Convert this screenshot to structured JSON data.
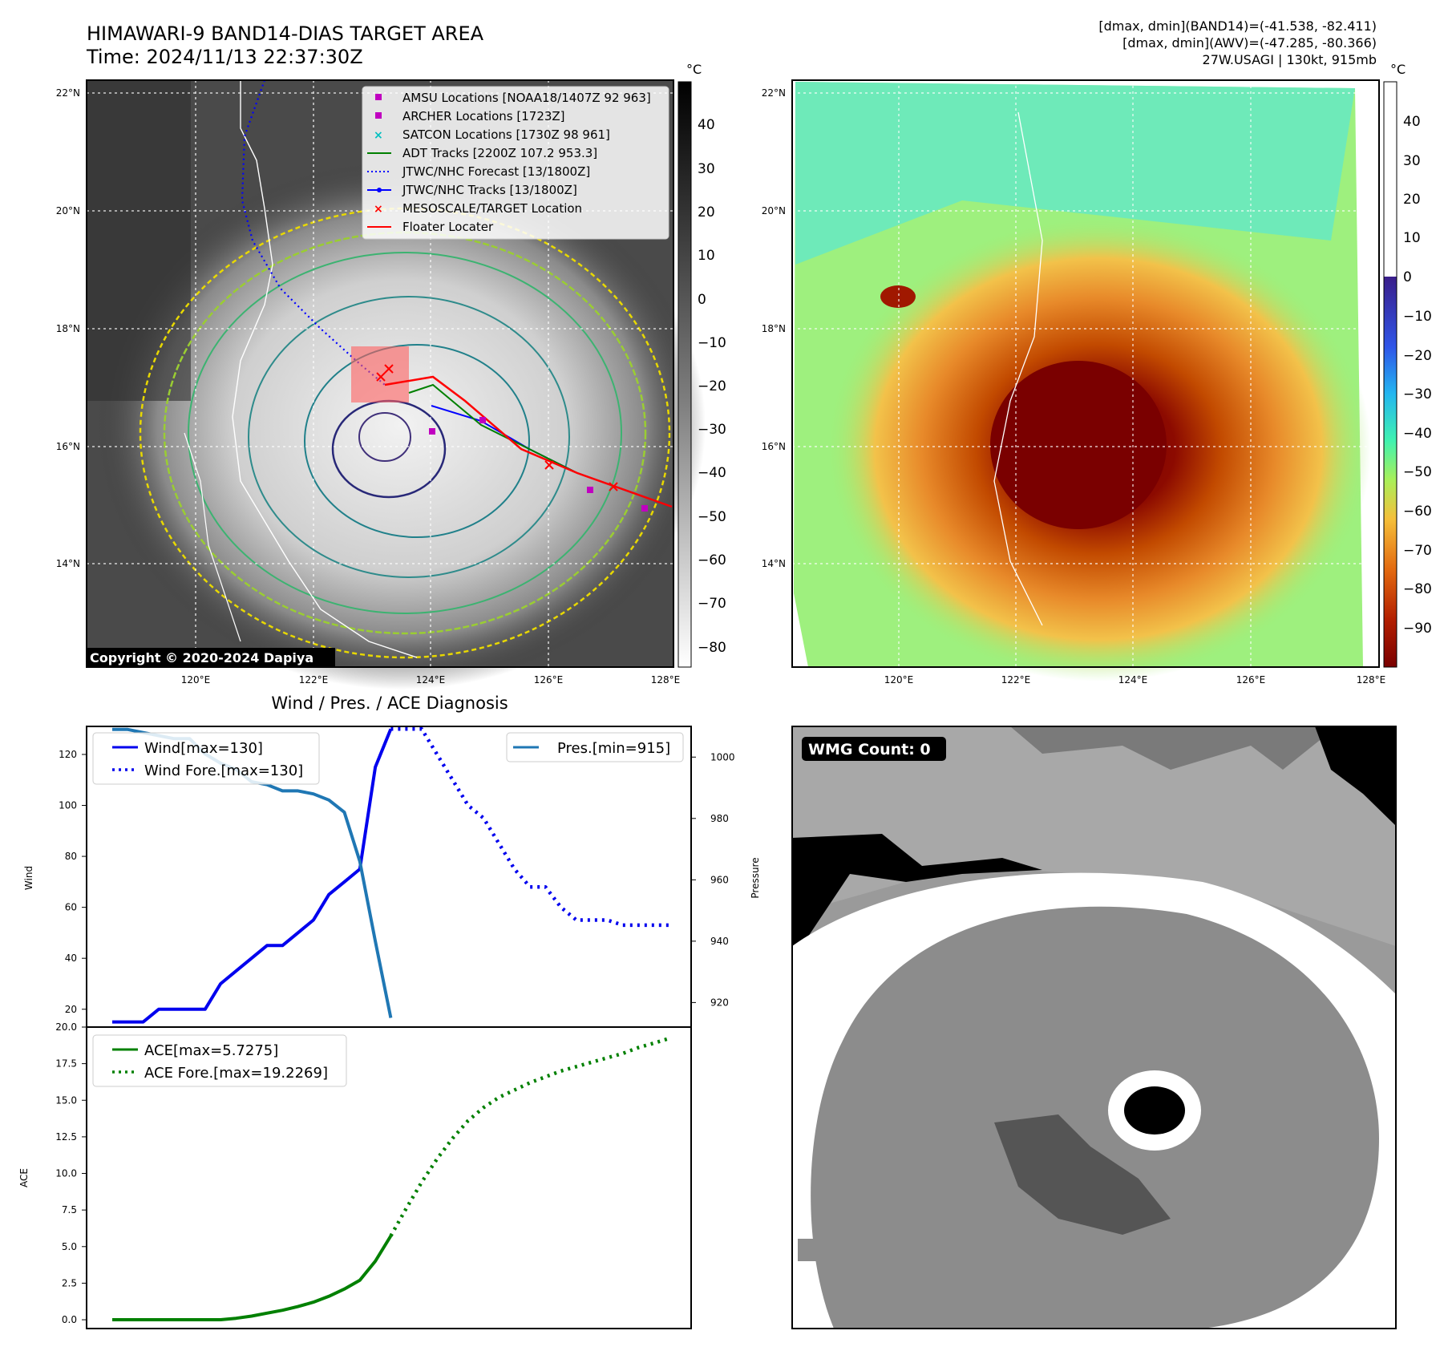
{
  "header": {
    "title": "HIMAWARI-9 BAND14-DIAS TARGET AREA",
    "time": "Time: 2024/11/13 22:37:30Z",
    "stats_line1": "[dmax, dmin](BAND14)=(-41.538, -82.411)",
    "stats_line2": "[dmax, dmin](AWV)=(-47.285, -80.366)",
    "stats_line3": "27W.USAGI | 130kt, 915mb"
  },
  "map_panel": {
    "lat_ticks": [
      "22°N",
      "20°N",
      "18°N",
      "16°N",
      "14°N"
    ],
    "lon_ticks": [
      "120°E",
      "122°E",
      "124°E",
      "126°E",
      "128°E"
    ],
    "copyright": "Copyright © 2020-2024 Dapiya",
    "colorbar_unit": "°C",
    "colorbar_ticks": [
      "40",
      "30",
      "20",
      "10",
      "0",
      "−10",
      "−20",
      "−30",
      "−40",
      "−50",
      "−60",
      "−70",
      "−80"
    ],
    "legend": [
      {
        "label": "AMSU Locations [NOAA18/1407Z 92 963]",
        "marker": "square",
        "color": "#c000c0"
      },
      {
        "label": "ARCHER Locations [1723Z]",
        "marker": "square",
        "color": "#c000c0"
      },
      {
        "label": "SATCON Locations [1730Z 98 961]",
        "marker": "x",
        "color": "#00c0c0"
      },
      {
        "label": "ADT Tracks [2200Z 107.2 953.3]",
        "marker": "line",
        "color": "#008000"
      },
      {
        "label": "JTWC/NHC Forecast [13/1800Z]",
        "marker": "dotted",
        "color": "#0000ff"
      },
      {
        "label": "JTWC/NHC Tracks [13/1800Z]",
        "marker": "line-dot",
        "color": "#0000ff"
      },
      {
        "label": "MESOSCALE/TARGET Location",
        "marker": "x",
        "color": "#ff0000"
      },
      {
        "label": "Floater Locater",
        "marker": "line",
        "color": "#ff0000"
      }
    ]
  },
  "awv_panel": {
    "lat_ticks": [
      "22°N",
      "20°N",
      "18°N",
      "16°N",
      "14°N"
    ],
    "lon_ticks": [
      "120°E",
      "122°E",
      "124°E",
      "126°E",
      "128°E"
    ],
    "colorbar_unit": "°C",
    "colorbar_ticks": [
      "40",
      "30",
      "20",
      "10",
      "0",
      "−10",
      "−20",
      "−30",
      "−40",
      "−50",
      "−60",
      "−70",
      "−80",
      "−90"
    ]
  },
  "wmg_panel": {
    "badge": "WMG Count: 0"
  },
  "chart_data": [
    {
      "type": "line",
      "title": "Wind / Pres. / ACE Diagnosis",
      "ylabel": "Wind",
      "y2label": "Pressure",
      "ylim": [
        13,
        131
      ],
      "y2lim": [
        912,
        1010
      ],
      "yticks": [
        "20",
        "40",
        "60",
        "80",
        "100",
        "120"
      ],
      "y2ticks": [
        "920",
        "940",
        "960",
        "980",
        "1000"
      ],
      "legend_left": [
        "Wind[max=130]",
        "Wind Fore.[max=130]"
      ],
      "legend_right": [
        "Pres.[min=915]"
      ],
      "series": [
        {
          "name": "Wind[max=130]",
          "style": "solid",
          "color": "#0000ee",
          "axis": "left",
          "x": [
            0,
            1,
            2,
            3,
            4,
            5,
            6,
            7,
            8,
            9,
            10,
            11,
            12,
            13,
            14,
            15,
            16,
            17,
            18
          ],
          "values": [
            15,
            15,
            15,
            20,
            20,
            20,
            20,
            30,
            35,
            40,
            45,
            45,
            50,
            55,
            65,
            70,
            75,
            115,
            130
          ]
        },
        {
          "name": "Wind Fore.[max=130]",
          "style": "dotted",
          "color": "#0000ee",
          "axis": "left",
          "x": [
            18,
            19,
            20,
            21,
            22,
            23,
            24,
            25,
            26,
            27,
            28,
            29,
            30,
            31,
            32,
            33,
            34,
            35,
            36
          ],
          "values": [
            130,
            130,
            130,
            120,
            110,
            100,
            95,
            85,
            75,
            68,
            68,
            60,
            55,
            55,
            55,
            53,
            53,
            53,
            53
          ]
        },
        {
          "name": "Pres.[min=915]",
          "style": "solid",
          "color": "#1f77b4",
          "axis": "right",
          "x": [
            0,
            1,
            2,
            3,
            4,
            5,
            6,
            7,
            8,
            9,
            10,
            11,
            12,
            13,
            14,
            15,
            16,
            17,
            18
          ],
          "values": [
            1009,
            1009,
            1008,
            1007,
            1006,
            1006,
            1001,
            998,
            996,
            992,
            991,
            989,
            989,
            988,
            986,
            982,
            966,
            940,
            915
          ]
        }
      ]
    },
    {
      "type": "line",
      "ylabel": "ACE",
      "ylim": [
        -0.6,
        20
      ],
      "yticks": [
        "0.0",
        "2.5",
        "5.0",
        "7.5",
        "10.0",
        "12.5",
        "15.0",
        "17.5",
        "20.0"
      ],
      "legend": [
        "ACE[max=5.7275]",
        "ACE Fore.[max=19.2269]"
      ],
      "series": [
        {
          "name": "ACE[max=5.7275]",
          "style": "solid",
          "color": "#008000",
          "x": [
            0,
            1,
            2,
            3,
            4,
            5,
            6,
            7,
            8,
            9,
            10,
            11,
            12,
            13,
            14,
            15,
            16,
            17,
            18
          ],
          "values": [
            0,
            0,
            0,
            0,
            0,
            0,
            0,
            0,
            0.1,
            0.25,
            0.45,
            0.65,
            0.9,
            1.2,
            1.6,
            2.1,
            2.7,
            4.0,
            5.7275
          ]
        },
        {
          "name": "ACE Fore.[max=19.2269]",
          "style": "dotted",
          "color": "#008000",
          "x": [
            18,
            19,
            20,
            21,
            22,
            23,
            24,
            25,
            26,
            27,
            28,
            29,
            30,
            31,
            32,
            33,
            34,
            35,
            36
          ],
          "values": [
            5.7275,
            7.6,
            9.4,
            11.0,
            12.4,
            13.6,
            14.5,
            15.2,
            15.7,
            16.2,
            16.6,
            17.0,
            17.3,
            17.6,
            17.9,
            18.2,
            18.6,
            18.9,
            19.2269
          ]
        }
      ]
    }
  ]
}
